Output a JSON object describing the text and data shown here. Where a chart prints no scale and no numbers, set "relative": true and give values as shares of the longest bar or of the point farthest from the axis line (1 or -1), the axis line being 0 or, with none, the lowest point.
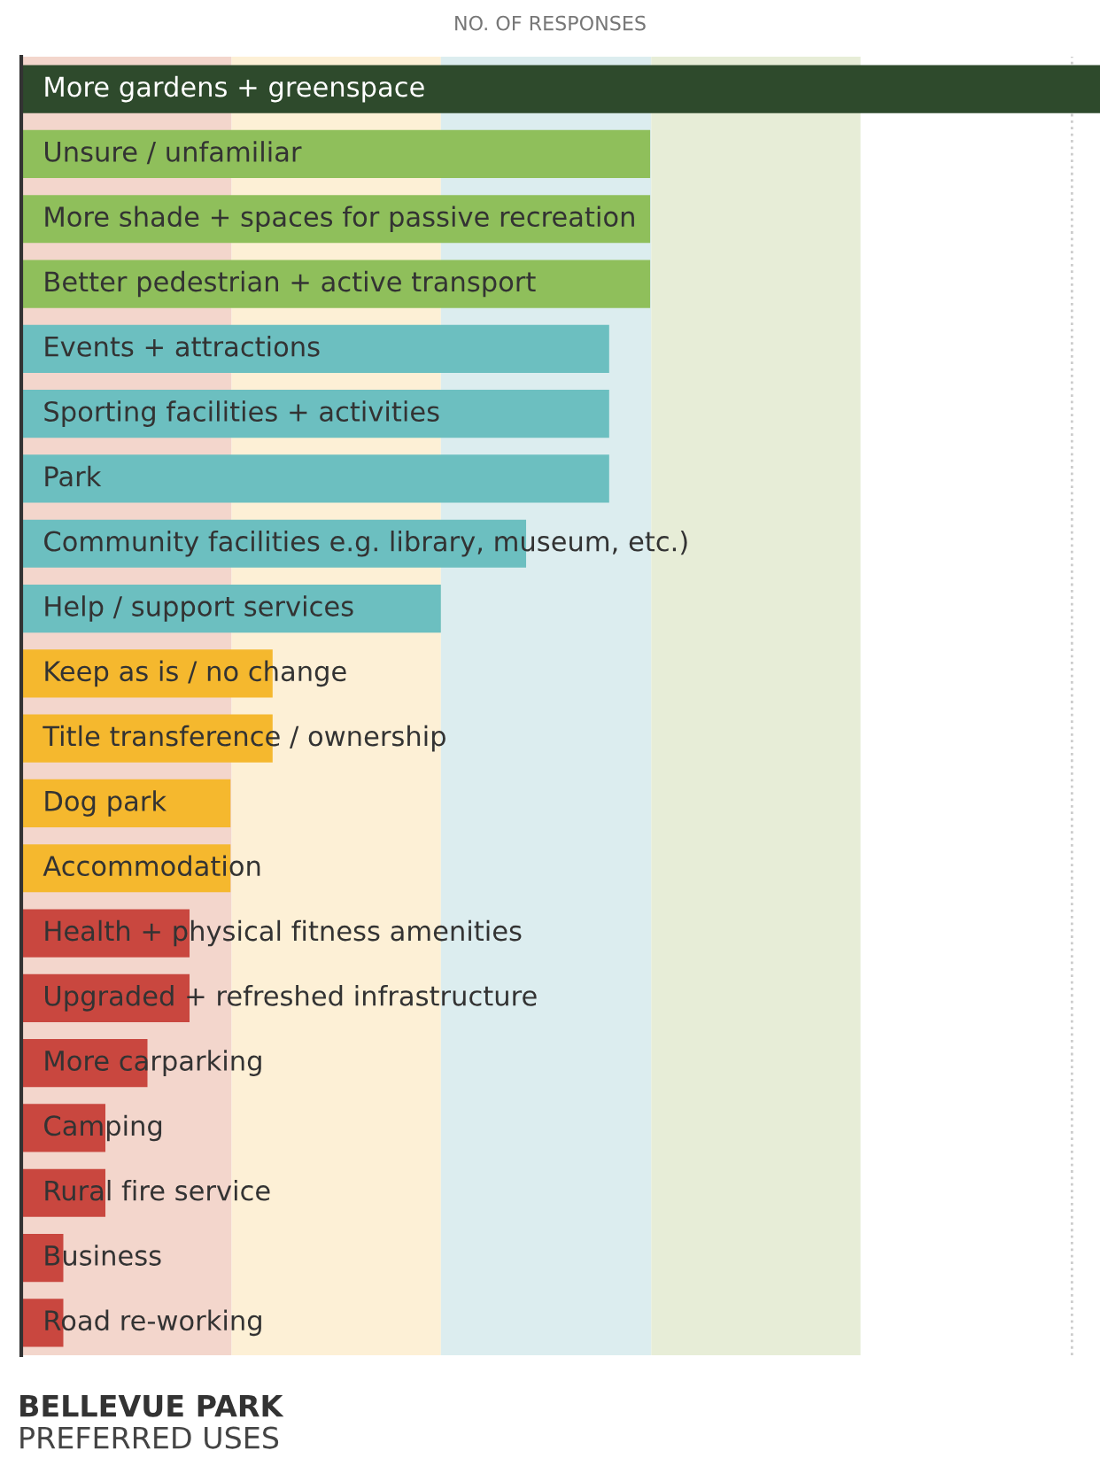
{
  "chart_data": {
    "type": "bar",
    "orientation": "horizontal",
    "relative": true,
    "title": "BELLEVUE PARK",
    "subtitle": "PREFERRED USES",
    "xlabel": "NO. OF RESPONSES",
    "categories": [
      "More gardens + greenspace",
      "Unsure / unfamiliar",
      "More shade + spaces for passive recreation",
      "Better pedestrian + active transport",
      "Events + attractions",
      "Sporting facilities + activities",
      "Park",
      "Community facilities e.g. library, museum, etc.)",
      "Help / support services",
      "Keep as is / no change",
      "Title transference / ownership",
      "Dog park",
      "Accommodation",
      "Health + physical fitness amenities",
      "Upgraded + refreshed infrastructure",
      "More carparking",
      "Camping",
      "Rural fire service",
      "Business",
      "Road re-working"
    ],
    "values": [
      1,
      0.583,
      0.583,
      0.583,
      0.545,
      0.545,
      0.545,
      0.468,
      0.389,
      0.233,
      0.233,
      0.194,
      0.194,
      0.156,
      0.156,
      0.117,
      0.078,
      0.078,
      0.039,
      0.039
    ],
    "colors": [
      "#2e4a2c",
      "#8fbf5b",
      "#8fbf5b",
      "#8fbf5b",
      "#6cbfc0",
      "#6cbfc0",
      "#6cbfc0",
      "#6cbfc0",
      "#6cbfc0",
      "#f5b82e",
      "#f5b82e",
      "#f5b82e",
      "#f5b82e",
      "#c9473f",
      "#c9473f",
      "#c9473f",
      "#c9473f",
      "#c9473f",
      "#c9473f",
      "#c9473f"
    ],
    "bands": [
      {
        "axis": "x",
        "from": 0,
        "to": 0.195,
        "color": "#f3d6cc"
      },
      {
        "axis": "x",
        "from": 0.195,
        "to": 0.389,
        "color": "#fdf0d6"
      },
      {
        "axis": "x",
        "from": 0.389,
        "to": 0.584,
        "color": "#dcedef"
      },
      {
        "axis": "x",
        "from": 0.584,
        "to": 0.778,
        "color": "#e7edd7"
      }
    ],
    "ref_lines": [
      {
        "axis": "x",
        "value": 0.974,
        "color": "#cccccc",
        "line_style": "dotted"
      }
    ]
  }
}
